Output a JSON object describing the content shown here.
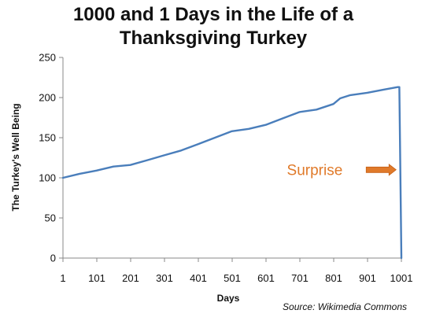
{
  "chart_data": {
    "type": "line",
    "title": "1000 and 1 Days in the Life of a Thanksgiving Turkey",
    "title_lines": [
      "1000 and 1 Days in the Life of a",
      "Thanksgiving Turkey"
    ],
    "xlabel": "Days",
    "ylabel": "The Turkey's Well Being",
    "xlim": [
      1,
      1001
    ],
    "ylim": [
      0,
      250
    ],
    "x_ticks": [
      1,
      101,
      201,
      301,
      401,
      501,
      601,
      701,
      801,
      901,
      1001
    ],
    "y_ticks": [
      0,
      50,
      100,
      150,
      200,
      250
    ],
    "grid": false,
    "legend": "none",
    "annotation": {
      "text": "Surprise",
      "x": 990,
      "y": 110,
      "arrow_color": "#e07a2a",
      "text_color": "#e07a2a"
    },
    "source_note": "Source: Wikimedia Commons",
    "series": [
      {
        "color": "#4a7ebb",
        "x": [
          1,
          50,
          100,
          150,
          200,
          250,
          300,
          350,
          400,
          450,
          500,
          550,
          600,
          650,
          700,
          750,
          800,
          820,
          850,
          900,
          950,
          990,
          995,
          1001
        ],
        "y": [
          100,
          105,
          109,
          114,
          116,
          122,
          128,
          134,
          142,
          150,
          158,
          161,
          166,
          174,
          182,
          185,
          192,
          199,
          203,
          206,
          210,
          213,
          213,
          0
        ]
      }
    ]
  }
}
